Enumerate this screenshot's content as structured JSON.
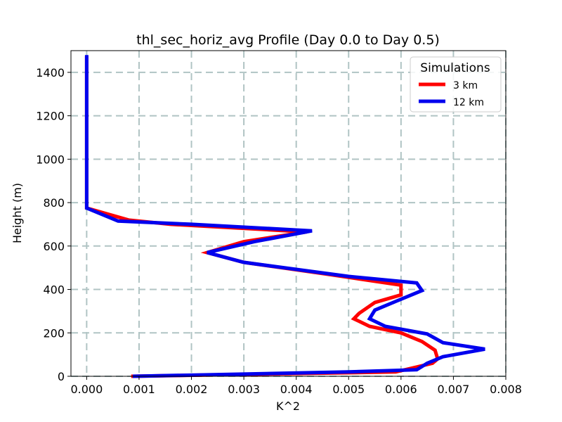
{
  "chart_data": {
    "type": "line",
    "title": "thl_sec_horiz_avg Profile (Day 0.0 to Day 0.5)",
    "xlabel": "K^2",
    "ylabel": "Height (m)",
    "xlim": [
      -0.0003,
      0.008
    ],
    "ylim": [
      0,
      1500
    ],
    "xticks": [
      0.0,
      0.001,
      0.002,
      0.003,
      0.004,
      0.005,
      0.006,
      0.007,
      0.008
    ],
    "xtick_labels": [
      "0.000",
      "0.001",
      "0.002",
      "0.003",
      "0.004",
      "0.005",
      "0.006",
      "0.007",
      "0.008"
    ],
    "yticks": [
      0,
      200,
      400,
      600,
      800,
      1000,
      1200,
      1400
    ],
    "ytick_labels": [
      "0",
      "200",
      "400",
      "600",
      "800",
      "1000",
      "1200",
      "1400"
    ],
    "grid": true,
    "legend": {
      "title": "Simulations",
      "position": "top-right"
    },
    "series": [
      {
        "name": "3 km",
        "color": "#ff0000",
        "points": [
          [
            0.00085,
            0
          ],
          [
            0.0059,
            20
          ],
          [
            0.0066,
            60
          ],
          [
            0.0067,
            80
          ],
          [
            0.00665,
            120
          ],
          [
            0.0064,
            160
          ],
          [
            0.006,
            200
          ],
          [
            0.0054,
            230
          ],
          [
            0.0051,
            265
          ],
          [
            0.0052,
            290
          ],
          [
            0.0055,
            340
          ],
          [
            0.006,
            375
          ],
          [
            0.006,
            420
          ],
          [
            0.0046,
            470
          ],
          [
            0.003,
            525
          ],
          [
            0.0023,
            570
          ],
          [
            0.003,
            620
          ],
          [
            0.0042,
            665
          ],
          [
            0.0016,
            700
          ],
          [
            0.0008,
            720
          ],
          [
            0.0,
            775
          ],
          [
            0.0,
            900
          ],
          [
            0.0,
            1200
          ],
          [
            0.0,
            1475
          ]
        ]
      },
      {
        "name": "12 km",
        "color": "#0000ee",
        "points": [
          [
            0.00088,
            0
          ],
          [
            0.005,
            20
          ],
          [
            0.0063,
            30
          ],
          [
            0.0065,
            60
          ],
          [
            0.0068,
            90
          ],
          [
            0.0076,
            125
          ],
          [
            0.0068,
            155
          ],
          [
            0.0065,
            195
          ],
          [
            0.0057,
            230
          ],
          [
            0.0054,
            265
          ],
          [
            0.0055,
            305
          ],
          [
            0.0059,
            345
          ],
          [
            0.0064,
            395
          ],
          [
            0.0063,
            430
          ],
          [
            0.005,
            460
          ],
          [
            0.003,
            525
          ],
          [
            0.0023,
            570
          ],
          [
            0.0032,
            620
          ],
          [
            0.0043,
            670
          ],
          [
            0.002,
            700
          ],
          [
            0.0006,
            715
          ],
          [
            0.0,
            775
          ],
          [
            0.0,
            900
          ],
          [
            0.0,
            1200
          ],
          [
            0.0,
            1480
          ]
        ]
      }
    ]
  }
}
